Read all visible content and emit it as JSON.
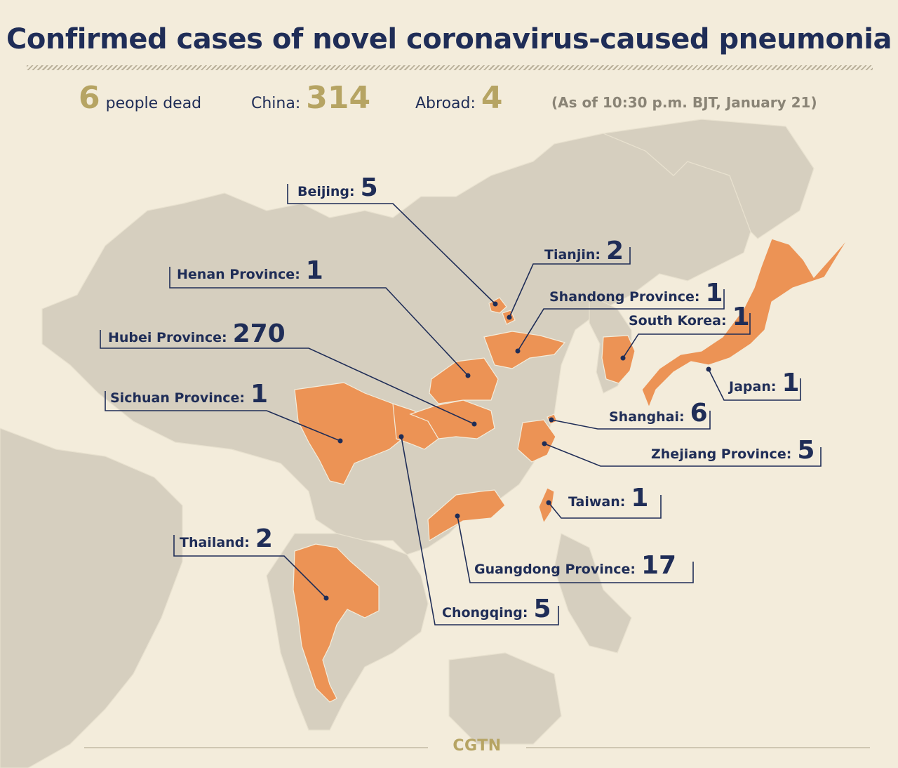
{
  "title": "Confirmed cases of novel coronavirus-caused pneumonia",
  "stats": {
    "dead_value": "6",
    "dead_label": "people dead",
    "china_label": "China:",
    "china_value": "314",
    "abroad_label": "Abroad:",
    "abroad_value": "4",
    "as_of": "(As of 10:30 p.m. BJT, January 21)"
  },
  "regions": [
    {
      "name": "Beijing:",
      "value": "5"
    },
    {
      "name": "Tianjin:",
      "value": "2"
    },
    {
      "name": "Henan Province:",
      "value": "1"
    },
    {
      "name": "Shandong Province:",
      "value": "1"
    },
    {
      "name": "South Korea:",
      "value": "1"
    },
    {
      "name": "Hubei Province:",
      "value": "270"
    },
    {
      "name": "Japan:",
      "value": "1"
    },
    {
      "name": "Sichuan Province:",
      "value": "1"
    },
    {
      "name": "Shanghai:",
      "value": "6"
    },
    {
      "name": "Zhejiang Province:",
      "value": "5"
    },
    {
      "name": "Taiwan:",
      "value": "1"
    },
    {
      "name": "Thailand:",
      "value": "2"
    },
    {
      "name": "Guangdong Province:",
      "value": "17"
    },
    {
      "name": "Chongqing:",
      "value": "5"
    }
  ],
  "brand": "CGTN",
  "colors": {
    "background": "#f3ecdb",
    "land": "#d6cfbf",
    "highlight": "#ec9355",
    "text": "#1f2d57",
    "accent": "#b6a463"
  }
}
